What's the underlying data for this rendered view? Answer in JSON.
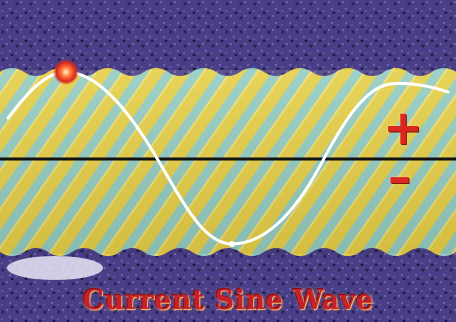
{
  "diagram": {
    "caption": "Current Sine Wave",
    "polarity": {
      "positive": "+",
      "negative": "–"
    }
  },
  "colors": {
    "frame_purple": "#4a3f86",
    "band_yellow": "#e8d24f",
    "stripe_blue": "#7ec9d8",
    "wave_white": "#ffffff",
    "axis_black": "#111111",
    "marker_red": "#e23a1c",
    "caption_red": "#c4212b"
  },
  "icons": {
    "peak_marker": "glowing-dot-icon"
  }
}
